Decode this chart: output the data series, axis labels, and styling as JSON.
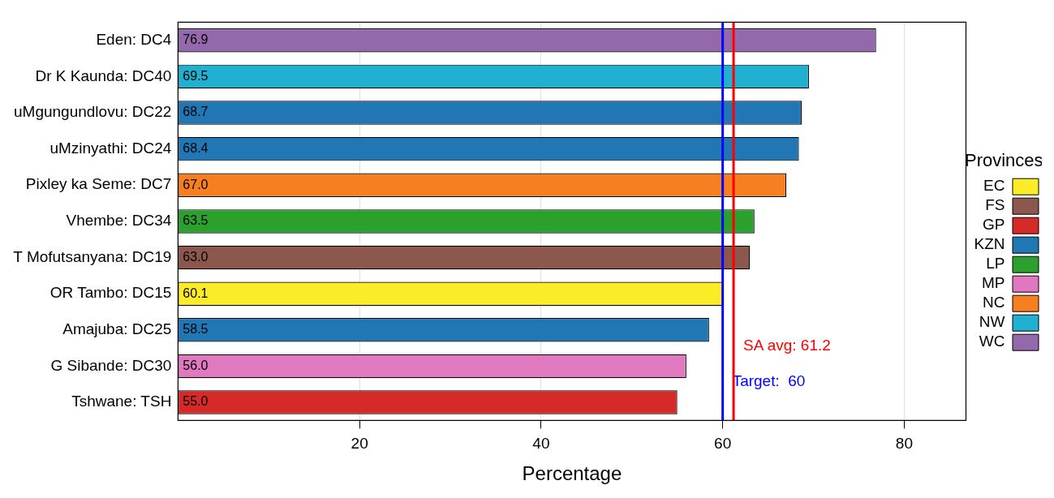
{
  "chart_data": {
    "type": "bar",
    "orientation": "horizontal",
    "stacked": true,
    "xlabel": "Percentage",
    "legend_title": "Provinces",
    "legend": "right",
    "grid": "x",
    "categories": [
      "Eden: DC4",
      "Dr K Kaunda: DC40",
      "uMgungundlovu: DC22",
      "uMzinyathi: DC24",
      "Pixley ka Seme: DC7",
      "Vhembe: DC34",
      "T Mofutsanyana: DC19",
      "OR Tambo: DC15",
      "Amajuba: DC25",
      "G Sibande: DC30",
      "Tshwane: TSH"
    ],
    "xlim": [
      0,
      86.8
    ],
    "xticks": [
      20,
      40,
      60,
      80
    ],
    "series": [
      {
        "name": "EC",
        "color": "#fbec27",
        "values": [
          null,
          null,
          null,
          null,
          null,
          null,
          null,
          60.1,
          null,
          null,
          null
        ],
        "value_labels": [
          null,
          null,
          null,
          null,
          null,
          null,
          null,
          "60.1",
          null,
          null,
          null
        ]
      },
      {
        "name": "FS",
        "color": "#8c574c",
        "values": [
          null,
          null,
          null,
          null,
          null,
          null,
          63.0,
          null,
          null,
          null,
          null
        ],
        "value_labels": [
          null,
          null,
          null,
          null,
          null,
          null,
          "63.0",
          null,
          null,
          null,
          null
        ]
      },
      {
        "name": "GP",
        "color": "#d62a28",
        "values": [
          null,
          null,
          null,
          null,
          null,
          null,
          null,
          null,
          null,
          null,
          55.0
        ],
        "value_labels": [
          null,
          null,
          null,
          null,
          null,
          null,
          null,
          null,
          null,
          null,
          "55.0"
        ]
      },
      {
        "name": "KZN",
        "color": "#2077b4",
        "values": [
          null,
          null,
          68.7,
          68.4,
          null,
          null,
          null,
          null,
          58.5,
          null,
          null
        ],
        "value_labels": [
          null,
          null,
          "68.7",
          "68.4",
          null,
          null,
          null,
          null,
          "58.5",
          null,
          null
        ]
      },
      {
        "name": "LP",
        "color": "#2ba02d",
        "values": [
          null,
          null,
          null,
          null,
          null,
          63.5,
          null,
          null,
          null,
          null,
          null
        ],
        "value_labels": [
          null,
          null,
          null,
          null,
          null,
          "63.5",
          null,
          null,
          null,
          null,
          null
        ]
      },
      {
        "name": "MP",
        "color": "#e179c1",
        "values": [
          null,
          null,
          null,
          null,
          null,
          null,
          null,
          null,
          null,
          56.0,
          null
        ],
        "value_labels": [
          null,
          null,
          null,
          null,
          null,
          null,
          null,
          null,
          null,
          "56.0",
          null
        ]
      },
      {
        "name": "NC",
        "color": "#f67f22",
        "values": [
          null,
          null,
          null,
          null,
          67.0,
          null,
          null,
          null,
          null,
          null,
          null
        ],
        "value_labels": [
          null,
          null,
          null,
          null,
          "67.0",
          null,
          null,
          null,
          null,
          null,
          null
        ]
      },
      {
        "name": "NW",
        "color": "#21b0cf",
        "values": [
          null,
          69.5,
          null,
          null,
          null,
          null,
          null,
          null,
          null,
          null,
          null
        ],
        "value_labels": [
          null,
          "69.5",
          null,
          null,
          null,
          null,
          null,
          null,
          null,
          null,
          null
        ]
      },
      {
        "name": "WC",
        "color": "#9369ac",
        "values": [
          76.9,
          null,
          null,
          null,
          null,
          null,
          null,
          null,
          null,
          null,
          null
        ],
        "value_labels": [
          "76.9",
          null,
          null,
          null,
          null,
          null,
          null,
          null,
          null,
          null,
          null
        ]
      }
    ],
    "ref_lines": [
      {
        "axis": "x",
        "value": 60,
        "label": "Target:  60",
        "color": "#0000ff"
      },
      {
        "axis": "x",
        "value": 61.2,
        "label": "SA avg: 61.2",
        "color": "#ff0000"
      }
    ]
  }
}
